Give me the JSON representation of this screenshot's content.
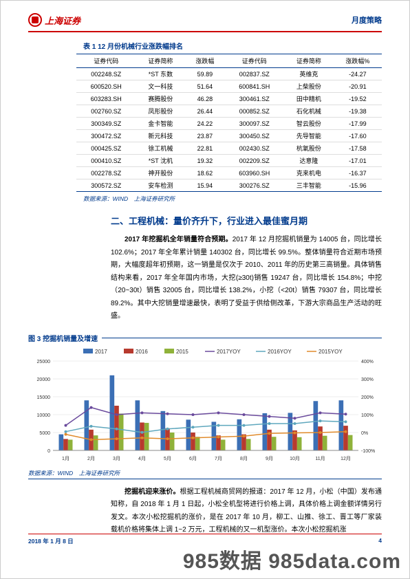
{
  "header": {
    "logo_text": "上海证券",
    "right": "月度策略"
  },
  "table": {
    "title": "表 1 12 月份机械行业涨跌幅排名",
    "columns": [
      "证券代码",
      "证券简称",
      "涨跌幅",
      "证券代码",
      "证券简称",
      "涨跌幅%"
    ],
    "rows": [
      [
        "002248.SZ",
        "*ST 东数",
        "59.89",
        "002837.SZ",
        "英维克",
        "-24.27"
      ],
      [
        "600520.SH",
        "文一科技",
        "51.64",
        "600841.SH",
        "上柴股份",
        "-20.91"
      ],
      [
        "603283.SH",
        "赛腾股份",
        "46.28",
        "300461.SZ",
        "田中精机",
        "-19.52"
      ],
      [
        "002760.SZ",
        "凤形股份",
        "26.44",
        "000852.SZ",
        "石化机械",
        "-19.38"
      ],
      [
        "300349.SZ",
        "金卡智能",
        "24.22",
        "300097.SZ",
        "智云股份",
        "-17.99"
      ],
      [
        "300472.SZ",
        "新元科技",
        "23.87",
        "300450.SZ",
        "先导智能",
        "-17.60"
      ],
      [
        "000425.SZ",
        "徐工机械",
        "22.81",
        "002430.SZ",
        "杭氧股份",
        "-17.58"
      ],
      [
        "000410.SZ",
        "*ST 沈机",
        "19.32",
        "002209.SZ",
        "达意隆",
        "-17.01"
      ],
      [
        "002278.SZ",
        "神开股份",
        "18.62",
        "603960.SH",
        "克来机电",
        "-16.37"
      ],
      [
        "300572.SZ",
        "安车检测",
        "15.94",
        "300276.SZ",
        "三丰智能",
        "-15.96"
      ]
    ],
    "source": "数据来源：WIND　上海证券研究所"
  },
  "section": {
    "title": "二、工程机械：量价齐升下，行业进入最佳蜜月期",
    "para1_bold": "2017 年挖掘机全年销量符合预期。",
    "para1": "2017 年 12 月挖掘机销量为 14005 台，同比增长 102.6%；2017 年全年累计销量 140302 台，同比增长 99.5%。整体销量符合近期市场预期，大幅度超年初预期，这一销量是仅次于 2010、2011 年的历史第三高销量。具体销售结构来看，2017 年全年国内市场，大挖(≥30t)销售 19247 台，同比增长 154.8%；中挖（20~30t）销售 32005 台，同比增长 138.2%，小挖（<20t）销售 79307 台，同比增长 89.2%。其中大挖销量增速最快，表明了受益于供给侧改革，下游大宗商品生产活动的旺盛。"
  },
  "chart": {
    "title": "图 3 挖掘机销量及增速",
    "legend": [
      "2017",
      "2016",
      "2015",
      "2017YOY",
      "2016YOY",
      "2015YOY"
    ],
    "legend_colors": [
      "#3b6fb5",
      "#b73a2e",
      "#8fb23a",
      "#6a4a9c",
      "#5ea7bd",
      "#e08a2a"
    ],
    "categories": [
      "1月",
      "2月",
      "3月",
      "4月",
      "5月",
      "6月",
      "7月",
      "8月",
      "9月",
      "10月",
      "11月",
      "12月"
    ],
    "bars_2017": [
      4500,
      14000,
      21000,
      14000,
      11000,
      8600,
      8000,
      8700,
      10400,
      10500,
      13800,
      14000
    ],
    "bars_2016": [
      3200,
      5800,
      12500,
      7800,
      6200,
      5000,
      4200,
      4500,
      5800,
      5600,
      6700,
      6900
    ],
    "bars_2015": [
      3000,
      4200,
      10300,
      7700,
      5000,
      3800,
      3000,
      3200,
      3800,
      3700,
      4100,
      4300
    ],
    "line_2017yoy": [
      40,
      140,
      100,
      110,
      105,
      100,
      110,
      100,
      90,
      80,
      110,
      103
    ],
    "line_2016yoy": [
      5,
      35,
      20,
      1,
      20,
      30,
      40,
      40,
      50,
      50,
      65,
      60
    ],
    "line_2015yoy": [
      -10,
      -40,
      -35,
      -30,
      -35,
      -30,
      -25,
      -20,
      -5,
      -2,
      0,
      5
    ],
    "y_left_max": 25000,
    "y_left_step": 5000,
    "y_right_min": -100,
    "y_right_max": 400,
    "y_right_step": 100,
    "source": "数据来源：WIND　上海证券研究所"
  },
  "para2_bold": "挖掘机迎来涨价。",
  "para2": "根据工程机械商贸网的报道：2017 年 12 月，小松（中国）发布通知称，自 2018 年 1 月 1 日起，小松全机型将进行价格上调，具体价格上调金额详情另行发文。本次小松挖掘机的涨价，是在 2017 年 10 月，柳工、山推、徐工、晋工等厂家装载机价格将集体上调 1~2 万元，工程机械的又一机型涨价。本次小松挖掘机涨",
  "footer": {
    "date": "2018 年 1 月 8 日",
    "page": "4"
  },
  "watermark": "985数据 985data.com"
}
